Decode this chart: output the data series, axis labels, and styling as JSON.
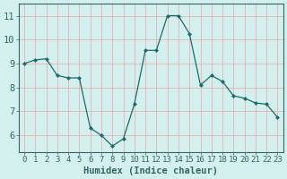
{
  "x": [
    0,
    1,
    2,
    3,
    4,
    5,
    6,
    7,
    8,
    9,
    10,
    11,
    12,
    13,
    14,
    15,
    16,
    17,
    18,
    19,
    20,
    21,
    22,
    23
  ],
  "y": [
    9.0,
    9.15,
    9.2,
    8.5,
    8.4,
    8.4,
    6.3,
    6.0,
    5.55,
    5.85,
    7.3,
    9.55,
    9.55,
    11.0,
    11.0,
    10.25,
    8.1,
    8.5,
    8.25,
    7.65,
    7.55,
    7.35,
    7.3,
    6.75
  ],
  "line_color": "#1a6b6b",
  "marker": "D",
  "marker_size": 2.0,
  "bg_color": "#d4f0ee",
  "grid_color": "#e8b0b0",
  "xlabel": "Humidex (Indice chaleur)",
  "xlim": [
    -0.5,
    23.5
  ],
  "ylim": [
    5.3,
    11.5
  ],
  "yticks": [
    6,
    7,
    8,
    9,
    10,
    11
  ],
  "xticks": [
    0,
    1,
    2,
    3,
    4,
    5,
    6,
    7,
    8,
    9,
    10,
    11,
    12,
    13,
    14,
    15,
    16,
    17,
    18,
    19,
    20,
    21,
    22,
    23
  ],
  "xtick_labels": [
    "0",
    "1",
    "2",
    "3",
    "4",
    "5",
    "6",
    "7",
    "8",
    "9",
    "10",
    "11",
    "12",
    "13",
    "14",
    "15",
    "16",
    "17",
    "18",
    "19",
    "20",
    "21",
    "22",
    "23"
  ],
  "tick_font_size": 6.5,
  "label_font_size": 7.5,
  "spine_color": "#336666",
  "axis_color": "#336666"
}
